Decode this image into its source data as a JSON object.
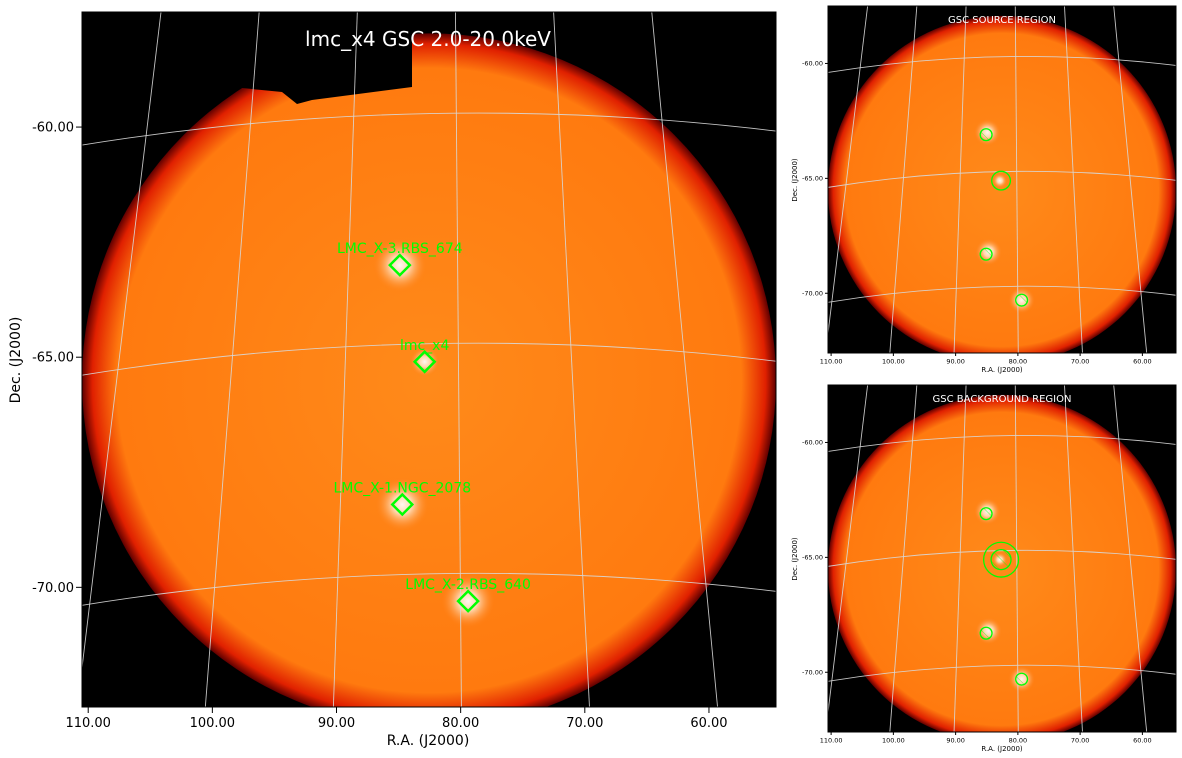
{
  "colors": {
    "sky_background": "#000000",
    "image_bright": "#fff8f0",
    "image_mid": "#ff8a1a",
    "image_base": "#ff7a0f",
    "image_edge": "#e02000",
    "marker": "#00ff00",
    "grid": "#d8d8d8",
    "title_text": "#ffffff"
  },
  "chart_data": [
    {
      "type": "heatmap",
      "title": "lmc_x4 GSC 2.0-20.0keV",
      "xlabel": "R.A. (J2000)",
      "ylabel": "Dec. (J2000)",
      "xlim": [
        110.5,
        54.6
      ],
      "ylim": [
        -72.6,
        -57.5
      ],
      "x_ticks": [
        "110.00",
        "100.00",
        "90.00",
        "80.00",
        "70.00",
        "60.00"
      ],
      "y_ticks": [
        "-60.00",
        "-65.00",
        "-70.00"
      ],
      "grid": "on",
      "sources": [
        {
          "name": "LMC_X-3.RBS_674",
          "ra": 84.9,
          "dec": -63.0
        },
        {
          "name": "lmc_x4",
          "ra": 82.9,
          "dec": -65.1
        },
        {
          "name": "LMC_X-1.NGC_2078",
          "ra": 84.7,
          "dec": -68.2
        },
        {
          "name": "LMC_X-2.RBS_640",
          "ra": 79.4,
          "dec": -70.3
        }
      ]
    },
    {
      "type": "heatmap",
      "title": "GSC SOURCE REGION",
      "xlabel": "R.A. (J2000)",
      "ylabel": "Dec. (J2000)",
      "xlim": [
        110.5,
        54.6
      ],
      "ylim": [
        -72.6,
        -57.5
      ],
      "x_ticks": [
        "110.00",
        "100.00",
        "90.00",
        "80.00",
        "70.00",
        "60.00"
      ],
      "y_ticks": [
        "-60.00",
        "-65.00",
        "-70.00"
      ],
      "grid": "on",
      "regions": [
        {
          "ra": 85.1,
          "dec": -63.1,
          "radius_deg": 0.95,
          "hatched": true
        },
        {
          "ra": 82.7,
          "dec": -65.1,
          "radius_deg": 1.5,
          "hatched": false
        },
        {
          "ra": 85.1,
          "dec": -68.3,
          "radius_deg": 0.95,
          "hatched": true
        },
        {
          "ra": 79.4,
          "dec": -70.3,
          "radius_deg": 0.95,
          "hatched": true
        }
      ]
    },
    {
      "type": "heatmap",
      "title": "GSC BACKGROUND REGION",
      "xlabel": "R.A. (J2000)",
      "ylabel": "Dec. (J2000)",
      "xlim": [
        110.5,
        54.6
      ],
      "ylim": [
        -72.6,
        -57.5
      ],
      "x_ticks": [
        "110.00",
        "100.00",
        "90.00",
        "80.00",
        "70.00",
        "60.00"
      ],
      "y_ticks": [
        "-60.00",
        "-65.00",
        "-70.00"
      ],
      "grid": "on",
      "regions": [
        {
          "ra": 85.1,
          "dec": -63.1,
          "radius_deg": 0.95,
          "hatched": true
        },
        {
          "ra": 82.7,
          "dec": -65.1,
          "radius_deg": 1.6,
          "hatched": true
        },
        {
          "ra": 82.7,
          "dec": -65.1,
          "radius_deg": 2.8,
          "hatched": false
        },
        {
          "ra": 85.1,
          "dec": -68.3,
          "radius_deg": 0.95,
          "hatched": true
        },
        {
          "ra": 79.4,
          "dec": -70.3,
          "radius_deg": 0.95,
          "hatched": true
        }
      ]
    }
  ]
}
